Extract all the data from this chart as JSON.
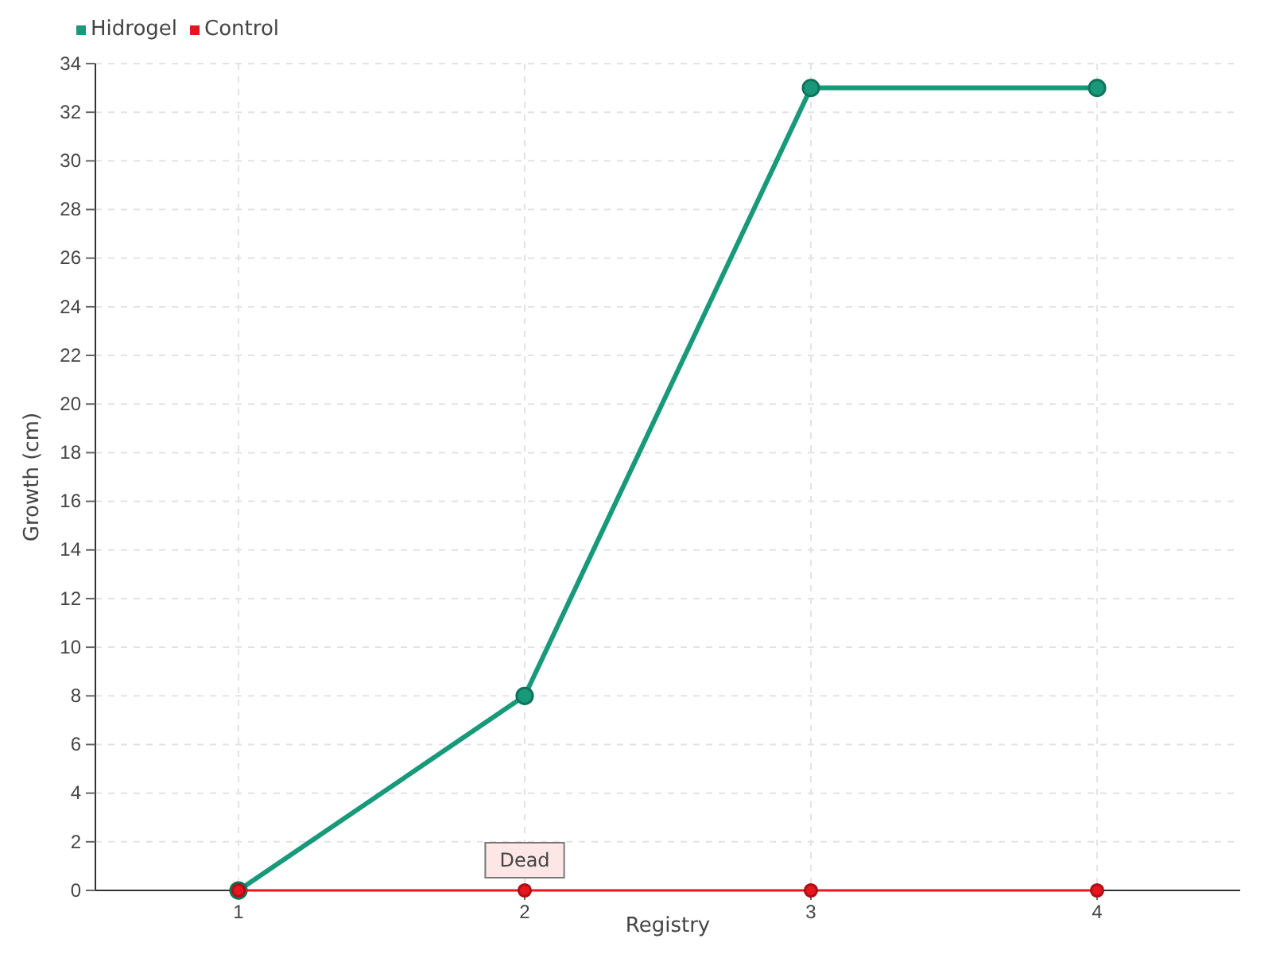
{
  "chart_data": {
    "type": "line",
    "xlabel": "Registry",
    "ylabel": "Growth (cm)",
    "x": [
      1,
      2,
      3,
      4
    ],
    "series": [
      {
        "name": "Hidrogel",
        "color": "#17997a",
        "values": [
          0,
          8,
          33,
          33
        ]
      },
      {
        "name": "Control",
        "color": "#e8141e",
        "values": [
          0,
          0,
          0,
          0
        ]
      }
    ],
    "xlim": [
      0.5,
      4.5
    ],
    "xticks": [
      1,
      2,
      3,
      4
    ],
    "ylim": [
      0,
      34
    ],
    "yticks": [
      0,
      2,
      4,
      6,
      8,
      10,
      12,
      14,
      16,
      18,
      20,
      22,
      24,
      26,
      28,
      30,
      32,
      34
    ],
    "grid": true,
    "legend": "top left",
    "marker": "circle",
    "line_style": "solid",
    "annotations": [
      {
        "text": "Dead",
        "x": 2,
        "y": 0
      }
    ]
  }
}
